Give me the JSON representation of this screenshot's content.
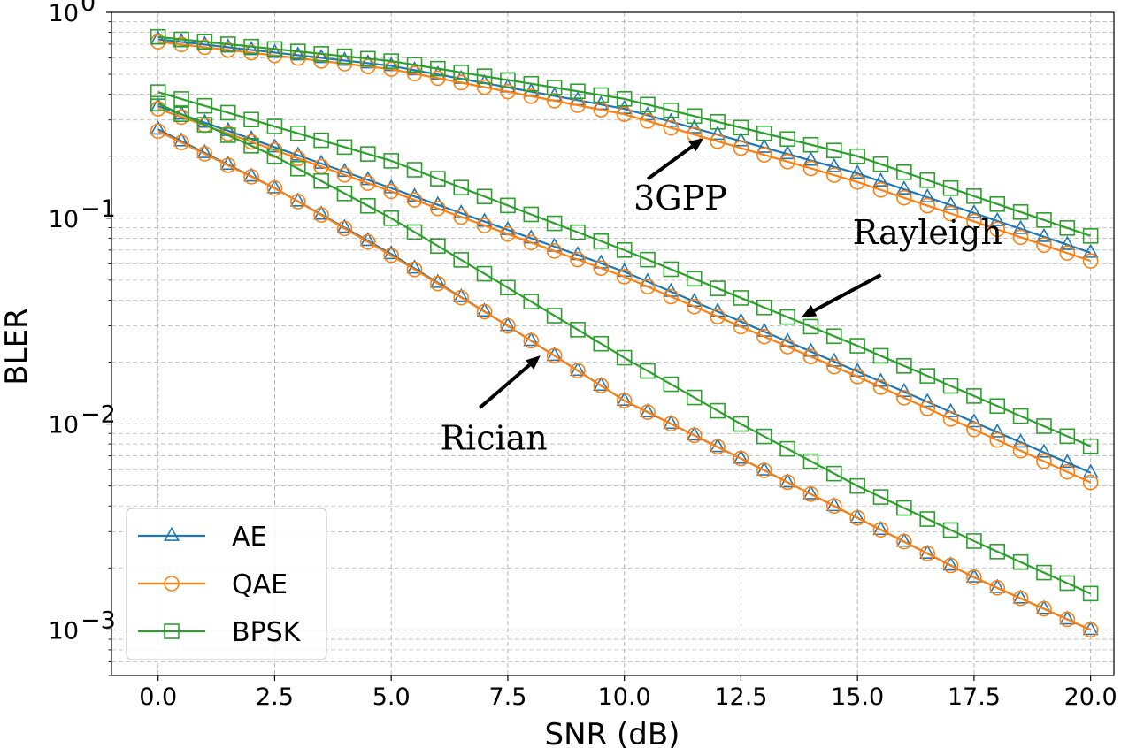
{
  "chart_data": {
    "type": "line",
    "xlabel": "SNR (dB)",
    "ylabel": "BLER",
    "xlim": [
      -1.0,
      20.5
    ],
    "ylim": [
      0.0006,
      1.0
    ],
    "yscale": "log",
    "grid": true,
    "xticks": [
      0,
      2.5,
      5,
      7.5,
      10,
      12.5,
      15,
      17.5,
      20
    ],
    "xtick_labels": [
      "0.0",
      "2.5",
      "5.0",
      "7.5",
      "10.0",
      "12.5",
      "15.0",
      "17.5",
      "20.0"
    ],
    "yticks": [
      {
        "value": 1,
        "base": "10",
        "exp": "0"
      },
      {
        "value": 0.1,
        "base": "10",
        "exp": "−1"
      },
      {
        "value": 0.01,
        "base": "10",
        "exp": "−2"
      },
      {
        "value": 0.001,
        "base": "10",
        "exp": "−3"
      }
    ],
    "legend_position": "bottom-left",
    "legend": [
      {
        "name": "AE",
        "color": "#1f77b4",
        "marker": "triangle"
      },
      {
        "name": "QAE",
        "color": "#ff7f0e",
        "marker": "circle"
      },
      {
        "name": "BPSK",
        "color": "#2ca02c",
        "marker": "square"
      }
    ],
    "x_start": 0,
    "x_step": 0.5,
    "series": [
      {
        "scheme": "AE",
        "channel": "3GPP",
        "anchors": [
          [
            0,
            0.74
          ],
          [
            5,
            0.55
          ],
          [
            10,
            0.34
          ],
          [
            15,
            0.165
          ],
          [
            20,
            0.068
          ]
        ]
      },
      {
        "scheme": "QAE",
        "channel": "3GPP",
        "anchors": [
          [
            0,
            0.72
          ],
          [
            5,
            0.53
          ],
          [
            10,
            0.32
          ],
          [
            15,
            0.15
          ],
          [
            20,
            0.062
          ]
        ]
      },
      {
        "scheme": "BPSK",
        "channel": "3GPP",
        "anchors": [
          [
            0,
            0.76
          ],
          [
            5,
            0.58
          ],
          [
            10,
            0.38
          ],
          [
            15,
            0.2
          ],
          [
            20,
            0.082
          ]
        ]
      },
      {
        "scheme": "AE",
        "channel": "Rayleigh",
        "anchors": [
          [
            0,
            0.35
          ],
          [
            5,
            0.14
          ],
          [
            10,
            0.055
          ],
          [
            15,
            0.018
          ],
          [
            20,
            0.0058
          ]
        ]
      },
      {
        "scheme": "QAE",
        "channel": "Rayleigh",
        "anchors": [
          [
            0,
            0.34
          ],
          [
            5,
            0.135
          ],
          [
            10,
            0.052
          ],
          [
            15,
            0.017
          ],
          [
            20,
            0.0052
          ]
        ]
      },
      {
        "scheme": "BPSK",
        "channel": "Rayleigh",
        "anchors": [
          [
            0,
            0.41
          ],
          [
            5,
            0.19
          ],
          [
            10,
            0.07
          ],
          [
            15,
            0.024
          ],
          [
            20,
            0.0078
          ]
        ]
      },
      {
        "scheme": "AE",
        "channel": "Rician",
        "anchors": [
          [
            0,
            0.27
          ],
          [
            2.5,
            0.14
          ],
          [
            5,
            0.067
          ],
          [
            7.5,
            0.03
          ],
          [
            10,
            0.013
          ],
          [
            12.5,
            0.0068
          ],
          [
            15,
            0.0035
          ],
          [
            17.5,
            0.0018
          ],
          [
            20,
            0.001
          ]
        ]
      },
      {
        "scheme": "QAE",
        "channel": "Rician",
        "anchors": [
          [
            0,
            0.265
          ],
          [
            2.5,
            0.14
          ],
          [
            5,
            0.066
          ],
          [
            7.5,
            0.03
          ],
          [
            10,
            0.013
          ],
          [
            12.5,
            0.0068
          ],
          [
            15,
            0.0035
          ],
          [
            17.5,
            0.0018
          ],
          [
            20,
            0.001
          ]
        ]
      },
      {
        "scheme": "BPSK",
        "channel": "Rician",
        "anchors": [
          [
            0,
            0.36
          ],
          [
            2.5,
            0.2
          ],
          [
            5,
            0.1
          ],
          [
            7.5,
            0.046
          ],
          [
            10,
            0.021
          ],
          [
            12.5,
            0.01
          ],
          [
            15,
            0.005
          ],
          [
            17.5,
            0.0027
          ],
          [
            20,
            0.0015
          ]
        ]
      }
    ],
    "annotations": [
      {
        "text": "3GPP",
        "text_xy": [
          11.2,
          0.11
        ],
        "arrow_from": [
          10.5,
          0.155
        ],
        "arrow_to": [
          11.7,
          0.245
        ]
      },
      {
        "text": "Rayleigh",
        "text_xy": [
          16.5,
          0.075
        ],
        "arrow_from": [
          15.5,
          0.053
        ],
        "arrow_to": [
          13.8,
          0.033
        ]
      },
      {
        "text": "Rician",
        "text_xy": [
          7.2,
          0.0075
        ],
        "arrow_from": [
          6.9,
          0.012
        ],
        "arrow_to": [
          8.2,
          0.0215
        ]
      }
    ]
  }
}
